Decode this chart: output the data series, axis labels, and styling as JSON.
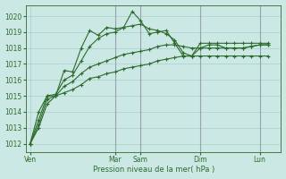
{
  "xlabel": "Pression niveau de la mer( hPa )",
  "bg_color": "#cce8e5",
  "grid_color": "#a8d0cc",
  "line_color": "#2d6b2d",
  "vline_color": "#8a8a9a",
  "ylim": [
    1011.5,
    1020.7
  ],
  "yticks": [
    1012,
    1013,
    1014,
    1015,
    1016,
    1017,
    1018,
    1019,
    1020
  ],
  "xtick_labels": [
    "Ven",
    "Mar",
    "Sam",
    "Dim",
    "Lun"
  ],
  "xtick_positions": [
    0,
    10,
    13,
    20,
    27
  ],
  "vline_positions": [
    10,
    13,
    20,
    27
  ],
  "xlim": [
    -0.5,
    29.5
  ],
  "series": [
    [
      1012.0,
      1013.2,
      1014.8,
      1015.0,
      1016.6,
      1016.5,
      1018.0,
      1019.1,
      1018.8,
      1019.3,
      1019.2,
      1019.3,
      1020.3,
      1019.7,
      1018.9,
      1019.0,
      1019.1,
      1018.3,
      1017.5,
      1017.5,
      1018.3,
      1018.3,
      1018.3,
      1018.3,
      1018.3,
      1018.3,
      1018.3,
      1018.3,
      1018.3
    ],
    [
      1012.0,
      1013.5,
      1015.0,
      1015.1,
      1016.0,
      1016.3,
      1017.2,
      1018.1,
      1018.6,
      1018.9,
      1019.0,
      1019.3,
      1019.4,
      1019.5,
      1019.2,
      1019.1,
      1018.9,
      1018.5,
      1017.7,
      1017.5,
      1018.0,
      1018.2,
      1018.2,
      1018.0,
      1018.0,
      1018.0,
      1018.1,
      1018.2,
      1018.2
    ],
    [
      1012.0,
      1014.0,
      1015.0,
      1015.0,
      1015.6,
      1015.9,
      1016.4,
      1016.8,
      1017.0,
      1017.2,
      1017.4,
      1017.6,
      1017.7,
      1017.8,
      1017.9,
      1018.1,
      1018.2,
      1018.2,
      1018.1,
      1018.0,
      1018.0,
      1018.0,
      1018.0,
      1018.0,
      1018.0,
      1018.0,
      1018.1,
      1018.2,
      1018.2
    ],
    [
      1012.0,
      1013.0,
      1014.5,
      1015.0,
      1015.2,
      1015.4,
      1015.7,
      1016.1,
      1016.2,
      1016.4,
      1016.5,
      1016.7,
      1016.8,
      1016.9,
      1017.0,
      1017.2,
      1017.3,
      1017.4,
      1017.5,
      1017.5,
      1017.5,
      1017.5,
      1017.5,
      1017.5,
      1017.5,
      1017.5,
      1017.5,
      1017.5,
      1017.5
    ]
  ]
}
